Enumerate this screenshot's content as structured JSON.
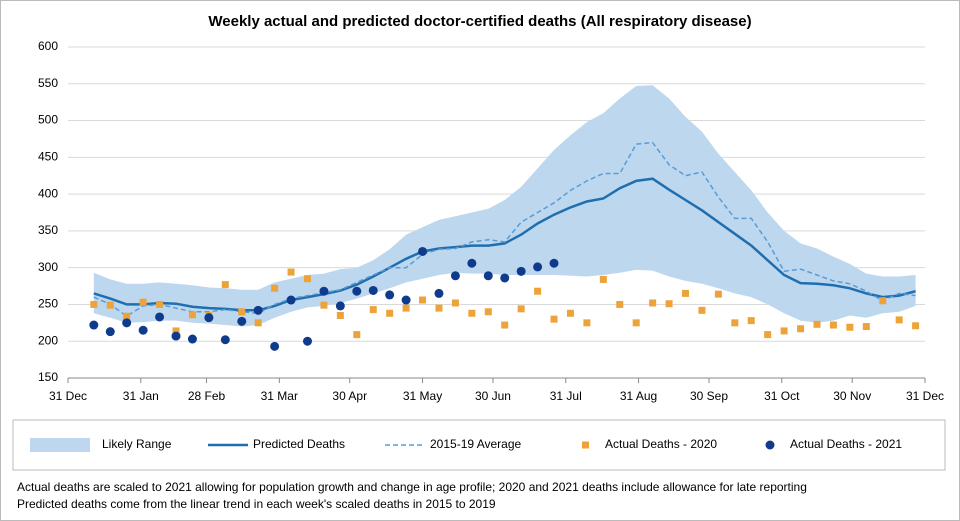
{
  "chart_data": {
    "type": "line",
    "title": "Weekly actual and predicted doctor-certified deaths (All respiratory disease)",
    "x": [
      11,
      18,
      25,
      32,
      39,
      46,
      53,
      60,
      67,
      74,
      81,
      88,
      95,
      102,
      109,
      116,
      123,
      130,
      137,
      144,
      151,
      158,
      165,
      172,
      179,
      186,
      193,
      200,
      207,
      214,
      221,
      228,
      235,
      242,
      249,
      256,
      263,
      270,
      277,
      284,
      291,
      298,
      305,
      312,
      319,
      326,
      333,
      340,
      347,
      354,
      361
    ],
    "xlim": [
      0,
      365
    ],
    "xticks": [
      {
        "value": 0,
        "label": "31 Dec"
      },
      {
        "value": 31,
        "label": "31 Jan"
      },
      {
        "value": 59,
        "label": "28 Feb"
      },
      {
        "value": 90,
        "label": "31 Mar"
      },
      {
        "value": 120,
        "label": "30 Apr"
      },
      {
        "value": 151,
        "label": "31 May"
      },
      {
        "value": 181,
        "label": "30 Jun"
      },
      {
        "value": 212,
        "label": "31 Jul"
      },
      {
        "value": 243,
        "label": "31 Aug"
      },
      {
        "value": 273,
        "label": "30 Sep"
      },
      {
        "value": 304,
        "label": "31 Oct"
      },
      {
        "value": 334,
        "label": "30 Nov"
      },
      {
        "value": 365,
        "label": "31 Dec"
      }
    ],
    "ylim": [
      150,
      600
    ],
    "yticks": [
      150,
      200,
      250,
      300,
      350,
      400,
      450,
      500,
      550,
      600
    ],
    "grid": true,
    "series": [
      {
        "name": "Likely Range",
        "color": "#bdd7ee",
        "kind": "range",
        "low": [
          238,
          232,
          225,
          226,
          228,
          228,
          225,
          224,
          222,
          220,
          222,
          232,
          240,
          246,
          248,
          252,
          258,
          265,
          272,
          280,
          285,
          290,
          293,
          292,
          292,
          290,
          290,
          290,
          290,
          289,
          288,
          290,
          293,
          297,
          296,
          288,
          282,
          278,
          272,
          265,
          260,
          250,
          238,
          228,
          225,
          228,
          235,
          232,
          238,
          240,
          248
        ],
        "high": [
          293,
          284,
          278,
          278,
          280,
          278,
          276,
          273,
          272,
          270,
          270,
          280,
          285,
          290,
          292,
          298,
          300,
          310,
          325,
          345,
          355,
          365,
          370,
          375,
          380,
          392,
          410,
          435,
          460,
          480,
          498,
          510,
          530,
          547,
          548,
          530,
          505,
          485,
          455,
          430,
          405,
          375,
          350,
          333,
          326,
          315,
          305,
          292,
          288,
          288,
          290
        ]
      },
      {
        "name": "Predicted Deaths",
        "color": "#1f6fb0",
        "kind": "line",
        "values": [
          265,
          258,
          250,
          250,
          252,
          251,
          247,
          245,
          244,
          242,
          242,
          248,
          256,
          260,
          264,
          269,
          277,
          288,
          300,
          312,
          322,
          326,
          328,
          330,
          330,
          333,
          345,
          360,
          372,
          382,
          390,
          394,
          408,
          418,
          421,
          406,
          392,
          378,
          362,
          346,
          330,
          310,
          290,
          279,
          278,
          276,
          272,
          265,
          260,
          262,
          268
        ]
      },
      {
        "name": "2015-19 Average",
        "color": "#5b9bd5",
        "kind": "dashed",
        "values": [
          260,
          250,
          234,
          248,
          250,
          245,
          240,
          240,
          243,
          240,
          238,
          250,
          258,
          262,
          266,
          270,
          280,
          290,
          300,
          300,
          318,
          325,
          326,
          335,
          338,
          335,
          362,
          375,
          388,
          405,
          418,
          428,
          428,
          468,
          470,
          440,
          425,
          430,
          396,
          367,
          367,
          335,
          295,
          298,
          290,
          282,
          278,
          268,
          255,
          265,
          262
        ]
      },
      {
        "name": "Actual Deaths - 2020",
        "color": "#eda33a",
        "kind": "square",
        "values": [
          250,
          249,
          234,
          253,
          250,
          214,
          236,
          235,
          277,
          240,
          225,
          272,
          294,
          285,
          249,
          235,
          209,
          243,
          238,
          245,
          256,
          245,
          252,
          238,
          240,
          222,
          244,
          268,
          230,
          238,
          225,
          284,
          250,
          225,
          252,
          251,
          265,
          242,
          264,
          225,
          228,
          209,
          214,
          217,
          223,
          222,
          219,
          220,
          255,
          229,
          221
        ]
      },
      {
        "name": "Actual Deaths - 2021",
        "color": "#0f3b8c",
        "kind": "dot",
        "values": [
          222,
          213,
          225,
          215,
          233,
          207,
          203,
          232,
          202,
          227,
          242,
          193,
          256,
          200,
          268,
          248,
          268,
          269,
          263,
          256,
          322,
          265,
          289,
          306,
          289,
          286,
          295,
          301,
          306,
          null,
          null,
          null,
          null,
          null,
          null,
          null,
          null,
          null,
          null,
          null,
          null,
          null,
          null,
          null,
          null,
          null,
          null,
          null,
          null,
          null,
          null
        ]
      }
    ],
    "notes": [
      "Actual deaths are scaled to 2021 allowing for population growth and change in age profile; 2020 and 2021 deaths include allowance for late reporting",
      "Predicted deaths come from the linear trend in each week's scaled deaths in 2015 to 2019"
    ]
  }
}
